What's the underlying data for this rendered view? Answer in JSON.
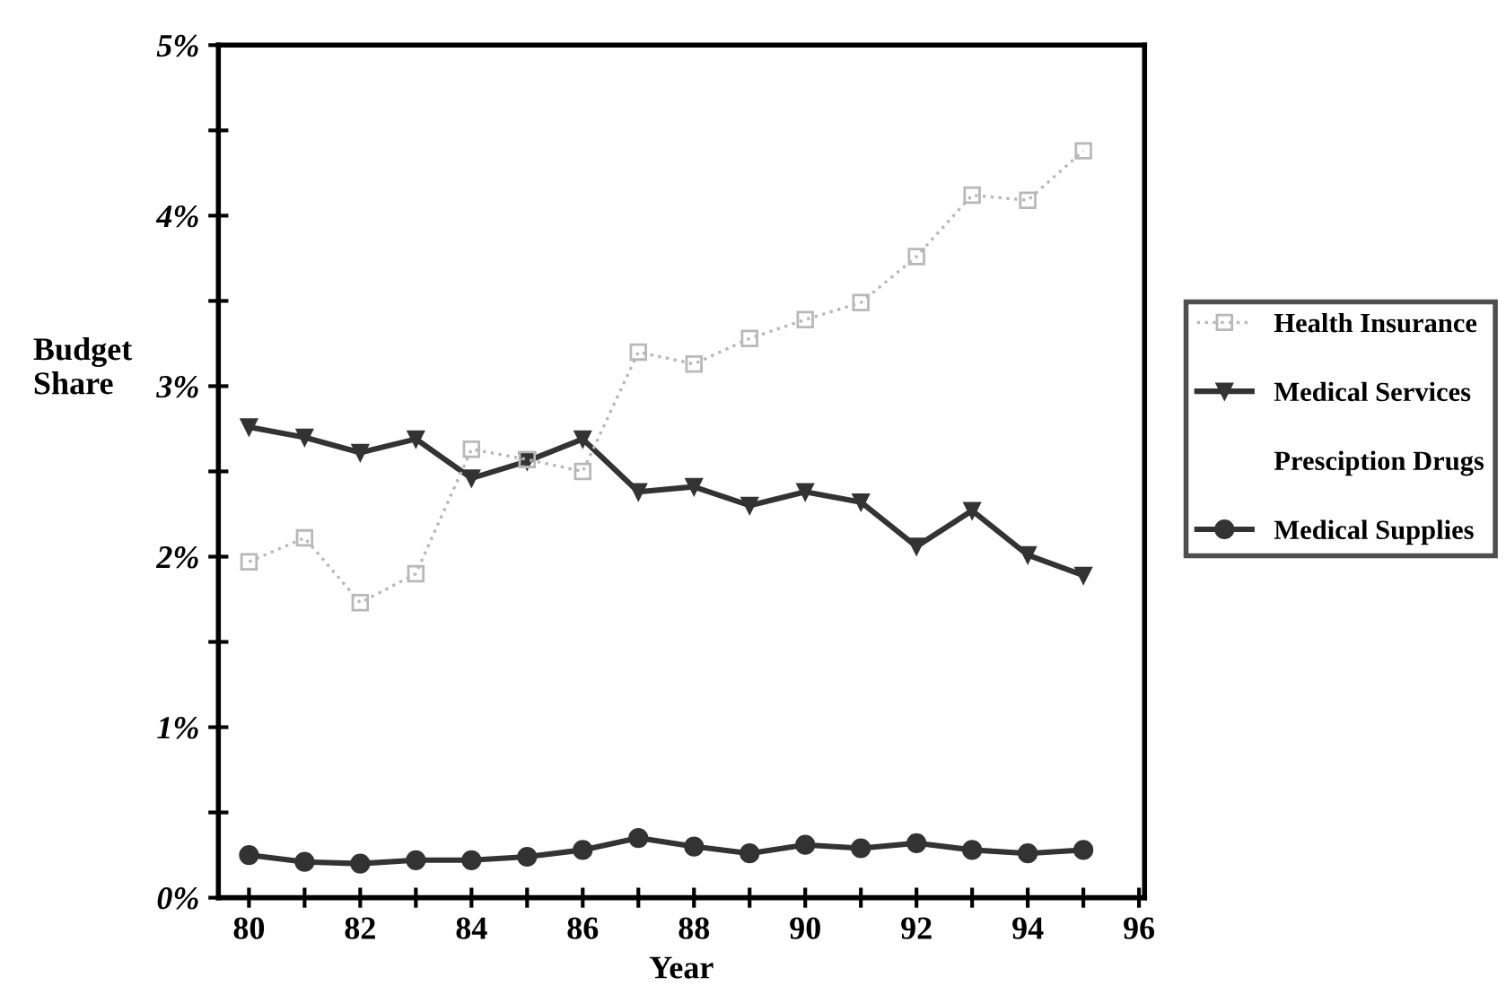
{
  "chart_data": {
    "type": "line",
    "xlabel": "Year",
    "ylabel": "Budget\nShare",
    "x": [
      80,
      81,
      82,
      83,
      84,
      85,
      86,
      87,
      88,
      89,
      90,
      91,
      92,
      93,
      94,
      95
    ],
    "series": [
      {
        "name": "Health Insurance",
        "color": "#b8b8b8",
        "marker": "square",
        "line_style": "dotted",
        "values": [
          1.97,
          2.11,
          1.73,
          1.9,
          2.63,
          2.57,
          2.5,
          3.2,
          3.13,
          3.28,
          3.39,
          3.49,
          3.76,
          4.12,
          4.09,
          4.38
        ]
      },
      {
        "name": "Medical Services",
        "color": "#333333",
        "marker": "triangle",
        "line_style": "solid",
        "values": [
          2.76,
          2.7,
          2.61,
          2.69,
          2.46,
          2.56,
          2.69,
          2.38,
          2.41,
          2.3,
          2.38,
          2.32,
          2.06,
          2.27,
          2.01,
          1.89
        ]
      },
      {
        "name": "Presciption Drugs",
        "values": [
          null,
          null,
          null,
          null,
          null,
          null,
          null,
          null,
          null,
          null,
          null,
          null,
          null,
          null,
          null,
          null
        ]
      },
      {
        "name": "Medical Supplies",
        "color": "#333333",
        "marker": "circle",
        "line_style": "solid",
        "values": [
          0.25,
          0.21,
          0.2,
          0.22,
          0.22,
          0.24,
          0.28,
          0.35,
          0.3,
          0.26,
          0.31,
          0.29,
          0.32,
          0.28,
          0.26,
          0.28
        ]
      }
    ],
    "xlim": [
      79.45,
      96.1
    ],
    "ylim": [
      0,
      5
    ],
    "xticks": [
      80,
      {
        "value": 81,
        "label": null
      },
      82,
      {
        "value": 83,
        "label": null
      },
      84,
      {
        "value": 85,
        "label": null
      },
      86,
      {
        "value": 87,
        "label": null
      },
      88,
      {
        "value": 89,
        "label": null
      },
      90,
      {
        "value": 91,
        "label": null
      },
      92,
      {
        "value": 93,
        "label": null
      },
      94,
      {
        "value": 95,
        "label": null
      },
      96
    ],
    "yticks": [
      {
        "value": 0,
        "label": "0%"
      },
      {
        "value": 0.5,
        "label": null
      },
      {
        "value": 1,
        "label": "1%"
      },
      {
        "value": 1.5,
        "label": null
      },
      {
        "value": 2,
        "label": "2%"
      },
      {
        "value": 2.5,
        "label": null
      },
      {
        "value": 3,
        "label": "3%"
      },
      {
        "value": 3.5,
        "label": null
      },
      {
        "value": 4,
        "label": "4%"
      },
      {
        "value": 4.5,
        "label": null
      },
      {
        "value": 5,
        "label": "5%"
      }
    ],
    "grid": false,
    "legend": "right"
  }
}
